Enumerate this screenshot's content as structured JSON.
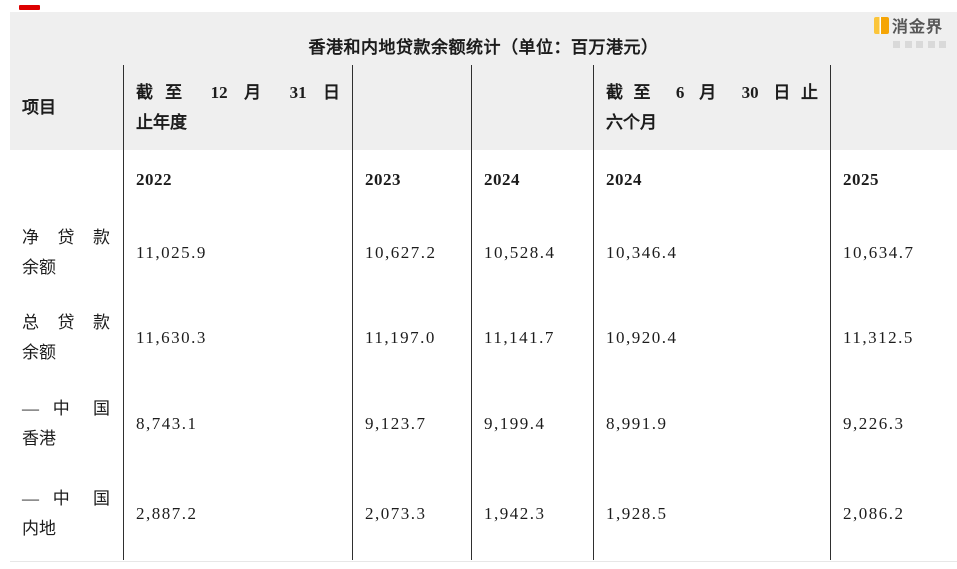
{
  "logo": {
    "text": "消金界"
  },
  "table": {
    "title": "香港和内地贷款余额统计（单位：百万港元）",
    "item_header": "项目",
    "col_groups": [
      {
        "line1": "截至 12 月 31 日",
        "line2": "止年度"
      },
      {
        "line1": "截至 6 月 30 日止",
        "line2": "六个月"
      }
    ],
    "years": [
      "2022",
      "2023",
      "2024",
      "2024",
      "2025"
    ],
    "rows": [
      {
        "label_line1": "净 贷 款",
        "label_line2": "余额",
        "values": [
          "11,025.9",
          "10,627.2",
          "10,528.4",
          "10,346.4",
          "10,634.7"
        ]
      },
      {
        "label_line1": "总 贷 款",
        "label_line2": "余额",
        "values": [
          "11,630.3",
          "11,197.0",
          "11,141.7",
          "10,920.4",
          "11,312.5"
        ]
      },
      {
        "label_line1": "— 中 国",
        "label_line2": "香港",
        "values": [
          "8,743.1",
          "9,123.7",
          "9,199.4",
          "8,991.9",
          "9,226.3"
        ]
      },
      {
        "label_line1": "— 中 国",
        "label_line2": "内地",
        "values": [
          "2,887.2",
          "2,073.3",
          "1,942.3",
          "1,928.5",
          "2,086.2"
        ]
      }
    ]
  },
  "colors": {
    "accent_yellow": "#f5a506",
    "header_bg": "#efefef",
    "grid_line": "#2f2f2f",
    "red_mark": "#dd0000"
  },
  "chart_data": {
    "type": "table",
    "title": "香港和内地贷款余额统计（单位：百万港元）",
    "column_groups": [
      {
        "label": "截至 12 月 31 日止年度",
        "columns": [
          "2022",
          "2023",
          "2024"
        ]
      },
      {
        "label": "截至 6 月 30 日止六个月",
        "columns": [
          "2024",
          "2025"
        ]
      }
    ],
    "columns": [
      "2022",
      "2023",
      "2024",
      "2024",
      "2025"
    ],
    "rows": [
      {
        "label": "净贷款余额",
        "values": [
          11025.9,
          10627.2,
          10528.4,
          10346.4,
          10634.7
        ]
      },
      {
        "label": "总贷款余额",
        "values": [
          11630.3,
          11197.0,
          11141.7,
          10920.4,
          11312.5
        ]
      },
      {
        "label": "—中国香港",
        "values": [
          8743.1,
          9123.7,
          9199.4,
          8991.9,
          9226.3
        ]
      },
      {
        "label": "—中国内地",
        "values": [
          2887.2,
          2073.3,
          1942.3,
          1928.5,
          2086.2
        ]
      }
    ],
    "unit": "百万港元"
  }
}
